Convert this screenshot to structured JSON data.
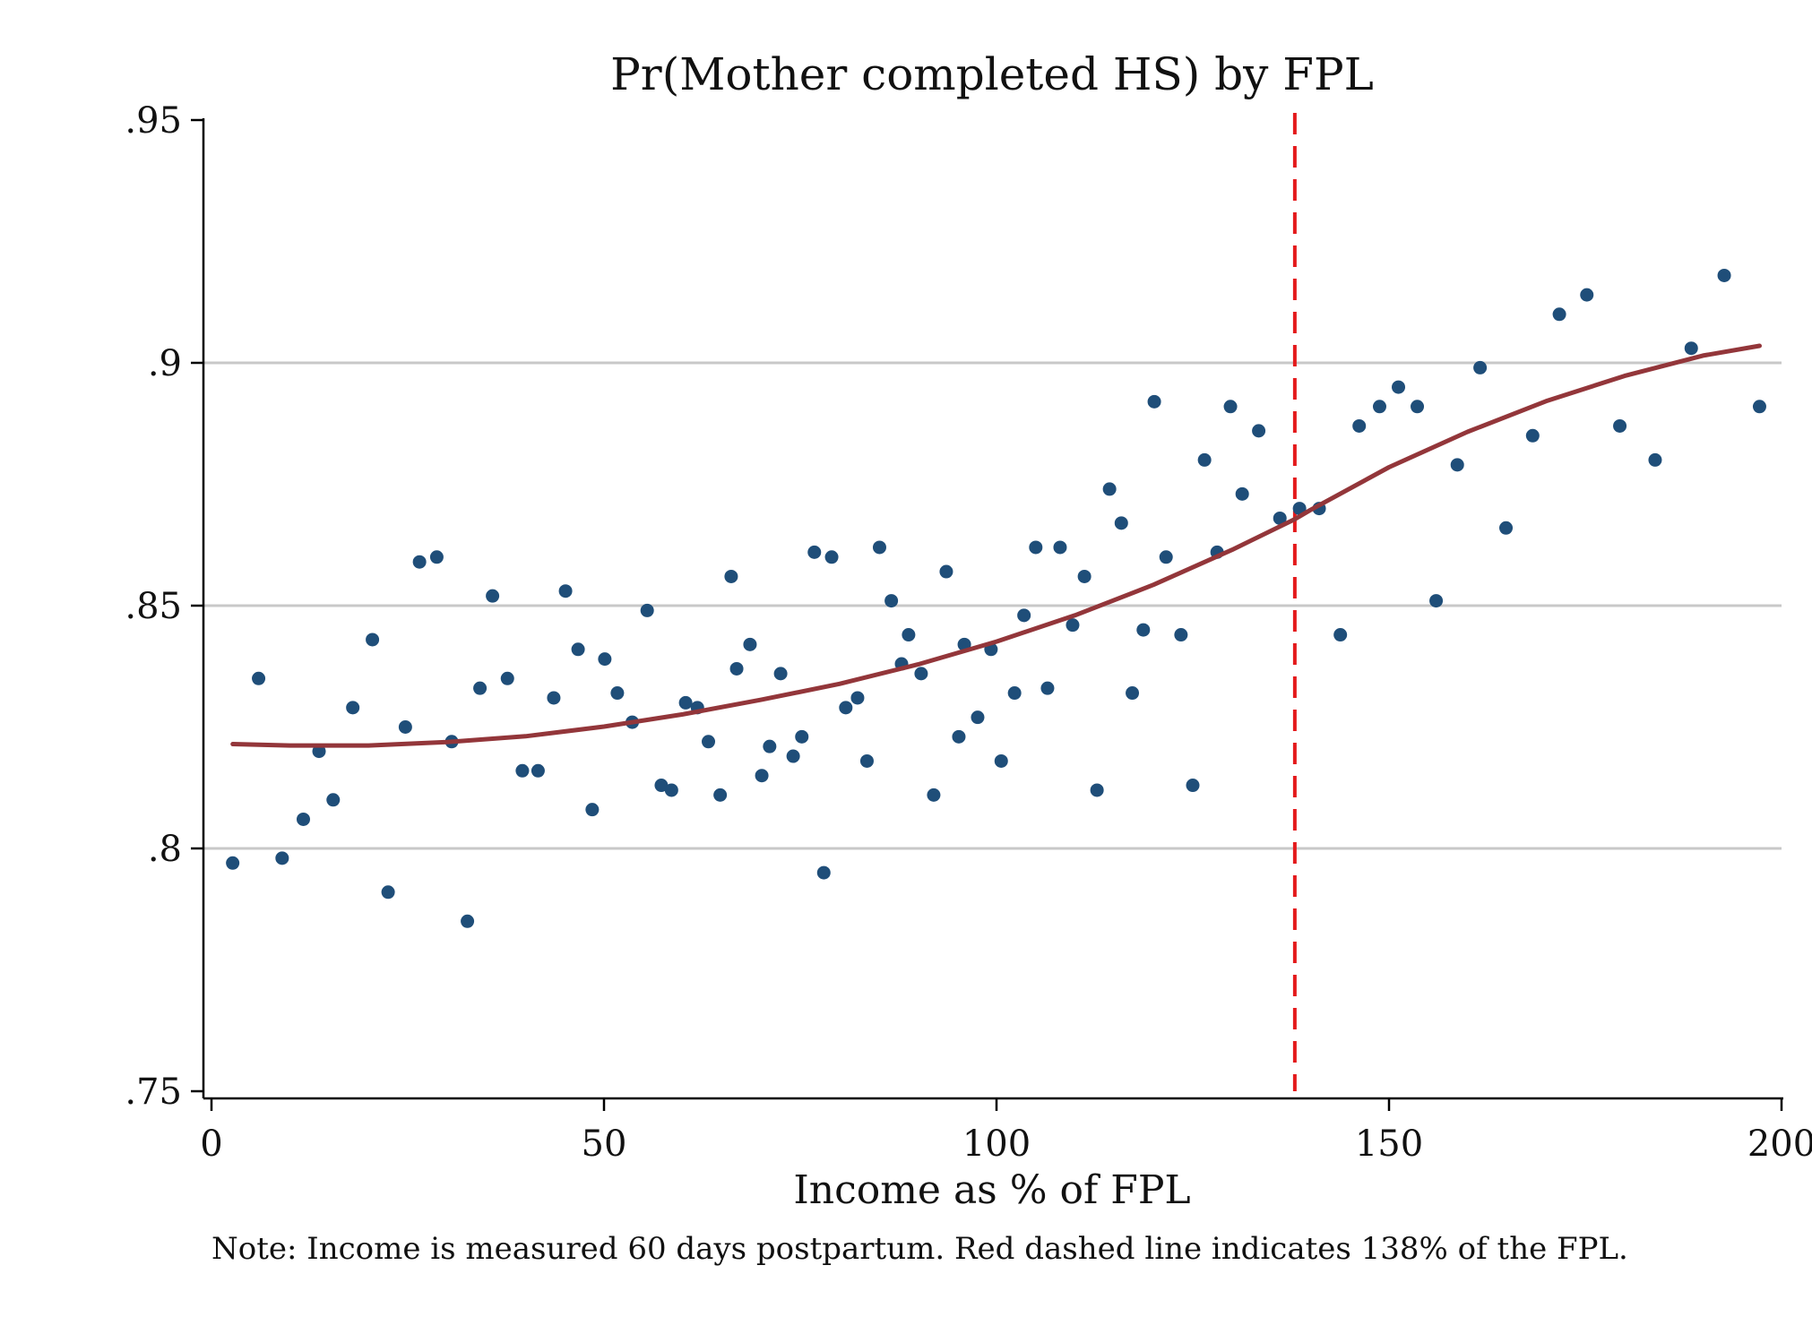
{
  "chart_data": {
    "type": "scatter",
    "title": "Pr(Mother completed HS) by FPL",
    "xlabel": "Income as % of FPL",
    "ylabel": "",
    "note": "Note: Income is measured 60 days postpartum. Red dashed line indicates 138% of the FPL.",
    "xlim": [
      0,
      200
    ],
    "ylim": [
      0.75,
      0.95
    ],
    "x_ticks": [
      0,
      50,
      100,
      150,
      200
    ],
    "x_tick_labels": [
      "0",
      "50",
      "100",
      "150",
      "200"
    ],
    "y_ticks": [
      0.75,
      0.8,
      0.85,
      0.9,
      0.95
    ],
    "y_tick_labels": [
      ".75",
      ".8",
      ".85",
      ".9",
      ".95"
    ],
    "grid": "horizontal",
    "cutoff": {
      "x": 138,
      "style": "dashed",
      "color": "#e41a1c"
    },
    "colors": {
      "points": "#1f4e79",
      "fit": "#93363a",
      "grid": "#c8c8c8",
      "axis": "#000000"
    },
    "points": {
      "x": [
        2.7,
        6,
        9,
        11.7,
        13.7,
        15.5,
        18,
        20.5,
        22.5,
        24.7,
        26.5,
        28.7,
        30.6,
        32.6,
        34.2,
        35.8,
        37.7,
        39.6,
        41.6,
        43.6,
        45.1,
        46.7,
        48.5,
        50.1,
        51.7,
        53.6,
        55.5,
        57.3,
        58.6,
        60.4,
        61.9,
        63.3,
        64.8,
        66.2,
        66.9,
        68.6,
        70.1,
        71.1,
        72.5,
        74.1,
        75.2,
        76.8,
        78,
        79,
        80.8,
        82.3,
        83.5,
        85.1,
        86.6,
        87.9,
        88.8,
        90.4,
        92,
        93.6,
        95.2,
        95.9,
        97.6,
        99.3,
        100.6,
        102.3,
        103.5,
        105,
        106.5,
        108.1,
        109.7,
        111.2,
        112.8,
        114.4,
        115.9,
        117.3,
        118.7,
        120.1,
        121.6,
        123.5,
        125,
        126.5,
        128.1,
        129.8,
        131.3,
        133.4,
        136.1,
        138.6,
        141.1,
        143.8,
        146.2,
        148.8,
        151.2,
        153.6,
        156,
        158.7,
        161.6,
        164.9,
        168.3,
        171.7,
        175.2,
        179.4,
        183.9,
        188.5,
        192.7,
        197.2
      ],
      "y": [
        0.797,
        0.835,
        0.798,
        0.806,
        0.82,
        0.81,
        0.829,
        0.843,
        0.791,
        0.825,
        0.859,
        0.86,
        0.822,
        0.785,
        0.833,
        0.852,
        0.835,
        0.816,
        0.816,
        0.831,
        0.853,
        0.841,
        0.808,
        0.839,
        0.832,
        0.826,
        0.849,
        0.813,
        0.812,
        0.83,
        0.829,
        0.822,
        0.811,
        0.856,
        0.837,
        0.842,
        0.815,
        0.821,
        0.836,
        0.819,
        0.823,
        0.861,
        0.795,
        0.86,
        0.829,
        0.831,
        0.818,
        0.862,
        0.851,
        0.838,
        0.844,
        0.836,
        0.811,
        0.857,
        0.823,
        0.842,
        0.827,
        0.841,
        0.818,
        0.832,
        0.848,
        0.862,
        0.833,
        0.862,
        0.846,
        0.856,
        0.812,
        0.874,
        0.867,
        0.832,
        0.845,
        0.892,
        0.86,
        0.844,
        0.813,
        0.88,
        0.861,
        0.891,
        0.873,
        0.886,
        0.868,
        0.87,
        0.87,
        0.844,
        0.887,
        0.891,
        0.895,
        0.891,
        0.851,
        0.879,
        0.899,
        0.866,
        0.885,
        0.91,
        0.914,
        0.887,
        0.88,
        0.903,
        0.918,
        0.891
      ]
    },
    "fit": {
      "x": [
        2.7,
        10,
        20,
        30,
        40,
        50,
        60,
        70,
        80,
        90,
        100,
        110,
        120,
        130,
        138,
        140,
        150,
        160,
        170,
        180,
        190,
        197.2
      ],
      "y": [
        0.8215,
        0.8212,
        0.8212,
        0.8219,
        0.8231,
        0.8251,
        0.8276,
        0.8306,
        0.8339,
        0.8379,
        0.8426,
        0.848,
        0.8543,
        0.8615,
        0.8678,
        0.8697,
        0.8785,
        0.8858,
        0.8921,
        0.8973,
        0.9015,
        0.9035
      ]
    }
  }
}
